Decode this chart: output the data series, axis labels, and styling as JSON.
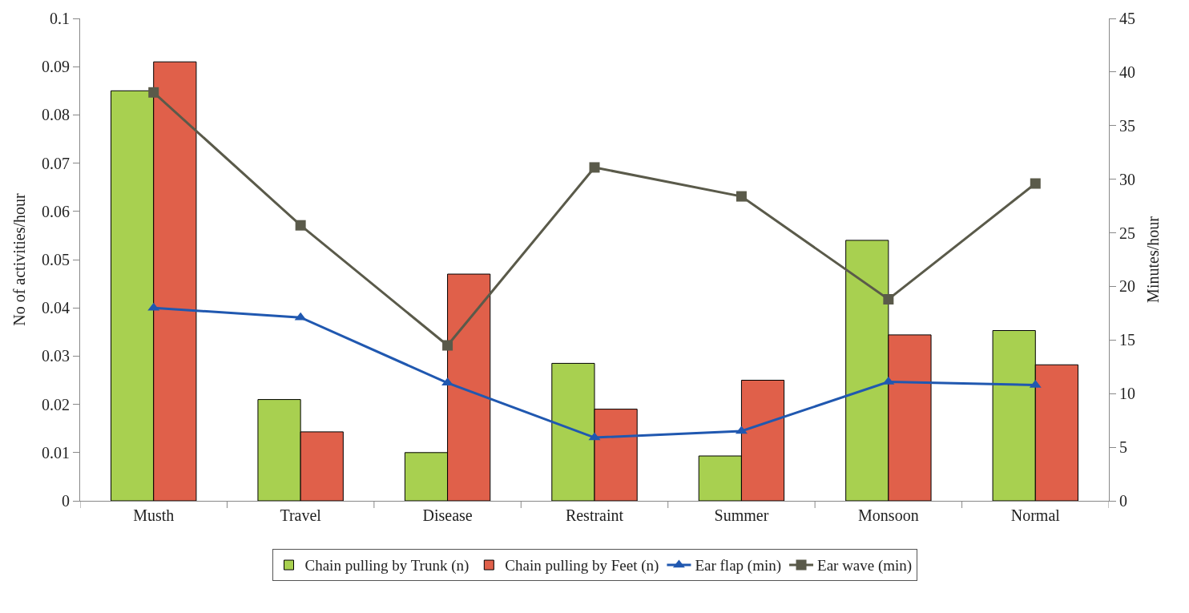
{
  "chart_data": {
    "type": "bar",
    "categories": [
      "Musth",
      "Travel",
      "Disease",
      "Restraint",
      "Summer",
      "Monsoon",
      "Normal"
    ],
    "ylabel": "No of activities/hour",
    "y2label": "Minutes/hour",
    "ylim": [
      0,
      0.1
    ],
    "yticks": [
      0,
      0.01,
      0.02,
      0.03,
      0.04,
      0.05,
      0.06,
      0.07,
      0.08,
      0.09,
      0.1
    ],
    "y2lim": [
      0,
      45
    ],
    "y2ticks": [
      0,
      5,
      10,
      15,
      20,
      25,
      30,
      35,
      40,
      45
    ],
    "legend": "bottom",
    "series": [
      {
        "name": "Chain pulling by Trunk (n)",
        "color": "#a8d050",
        "values": [
          0.085,
          0.021,
          0.01,
          0.0285,
          0.0093,
          0.054,
          0.0353
        ]
      },
      {
        "name": "Chain pulling by Feet (n)",
        "color": "#e0604a",
        "values": [
          0.091,
          0.0143,
          0.047,
          0.019,
          0.025,
          0.0344,
          0.0282
        ]
      },
      {
        "name": "Ear flap (min)",
        "type": "line",
        "axis": "y2",
        "color": "#2058b0",
        "marker": "triangle",
        "values": [
          18,
          17.1,
          11,
          5.9,
          6.5,
          11.1,
          10.8
        ]
      },
      {
        "name": "Ear wave (min)",
        "type": "line",
        "axis": "y2",
        "color": "#5a5a4a",
        "marker": "square",
        "values": [
          38.1,
          25.7,
          14.5,
          31.1,
          28.4,
          18.8,
          29.6
        ]
      }
    ]
  }
}
